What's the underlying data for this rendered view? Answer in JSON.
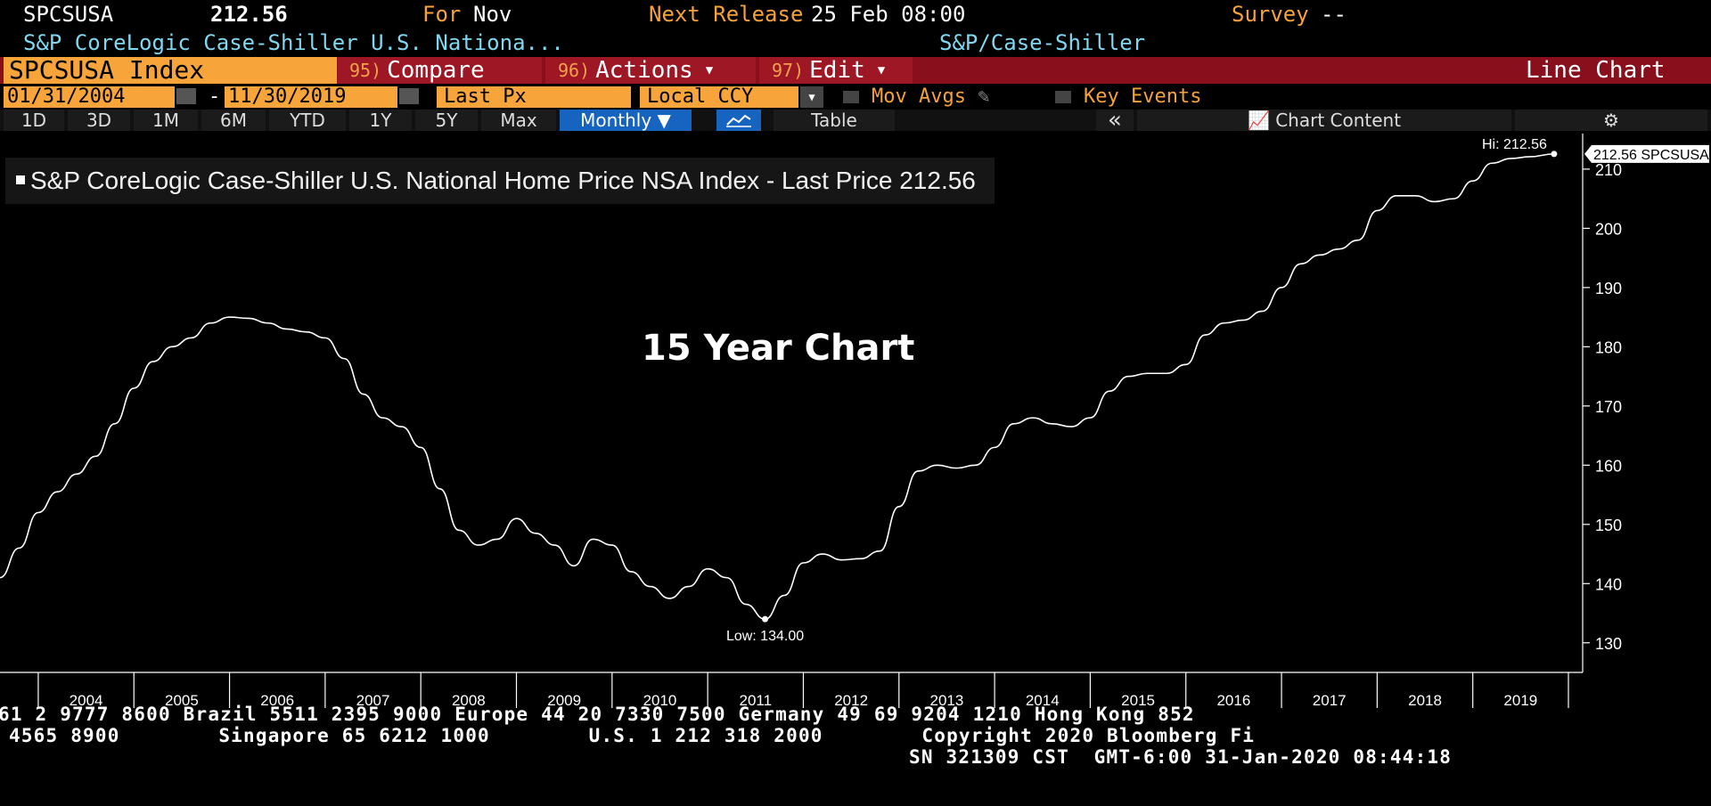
{
  "header": {
    "ticker": "SPCSUSA",
    "last": "212.56",
    "for_label": "For",
    "for_value": "Nov",
    "next_release_label": "Next Release",
    "next_release_value": "25 Feb 08:00",
    "survey_label": "Survey",
    "survey_value": "--",
    "long_name": "S&P CoreLogic Case-Shiller U.S. Nationa...",
    "source": "S&P/Case-Shiller"
  },
  "toolbar": {
    "security": "SPCSUSA Index",
    "compare_num": "95)",
    "compare_label": "Compare",
    "actions_num": "96)",
    "actions_label": "Actions",
    "edit_num": "97)",
    "edit_label": "Edit",
    "mode": "Line Chart",
    "start_date": "01/31/2004",
    "dash": "-",
    "end_date": "11/30/2019",
    "field": "Last Px",
    "currency": "Local CCY",
    "mov_avgs": "Mov Avgs",
    "key_events": "Key Events"
  },
  "tabs": {
    "t1d": "1D",
    "t3d": "3D",
    "t1m": "1M",
    "t6m": "6M",
    "tytd": "YTD",
    "t1y": "1Y",
    "t5y": "5Y",
    "tmax": "Max",
    "monthly": "Monthly ▼",
    "table": "Table",
    "collapse": "«",
    "chart_content": "Chart Content",
    "settings": "⚙"
  },
  "legend": {
    "text": "S&P CoreLogic Case-Shiller U.S. National Home Price NSA Index - Last Price",
    "value": "212.56"
  },
  "annotation": {
    "chart_label": "15 Year Chart"
  },
  "chart_data": {
    "type": "line",
    "title": "",
    "xlabel": "",
    "ylabel": "",
    "ylim": [
      125,
      216
    ],
    "yticks": [
      130,
      140,
      150,
      160,
      170,
      180,
      190,
      200,
      210
    ],
    "xlim": [
      2003.6,
      2020.0
    ],
    "xticks": [
      "2004",
      "2005",
      "2006",
      "2007",
      "2008",
      "2009",
      "2010",
      "2011",
      "2012",
      "2013",
      "2014",
      "2015",
      "2016",
      "2017",
      "2018",
      "2019"
    ],
    "hi_label": "Hi: 212.56",
    "low_label": "Low: 134.00",
    "last_tag": "212.56 SPCSUSA",
    "series": [
      {
        "x": [
          2003.6,
          2003.8,
          2004.0,
          2004.2,
          2004.4,
          2004.6,
          2004.8,
          2005.0,
          2005.2,
          2005.4,
          2005.6,
          2005.8,
          2006.0,
          2006.2,
          2006.4,
          2006.6,
          2006.8,
          2007.0,
          2007.2,
          2007.4,
          2007.6,
          2007.8,
          2008.0,
          2008.2,
          2008.4,
          2008.6,
          2008.8,
          2009.0,
          2009.2,
          2009.4,
          2009.6,
          2009.8,
          2010.0,
          2010.2,
          2010.4,
          2010.6,
          2010.8,
          2011.0,
          2011.2,
          2011.4,
          2011.6,
          2011.8,
          2012.0,
          2012.2,
          2012.4,
          2012.6,
          2012.8,
          2013.0,
          2013.2,
          2013.4,
          2013.6,
          2013.8,
          2014.0,
          2014.2,
          2014.4,
          2014.6,
          2014.8,
          2015.0,
          2015.2,
          2015.4,
          2015.6,
          2015.8,
          2016.0,
          2016.2,
          2016.4,
          2016.6,
          2016.8,
          2017.0,
          2017.2,
          2017.4,
          2017.6,
          2017.8,
          2018.0,
          2018.2,
          2018.4,
          2018.6,
          2018.8,
          2019.0,
          2019.2,
          2019.4,
          2019.6,
          2019.85
        ],
        "y": [
          141,
          146,
          152,
          155.5,
          158.5,
          161.5,
          167,
          173,
          177.5,
          180,
          181.5,
          184,
          185,
          184.8,
          184,
          183,
          182.5,
          181.5,
          178,
          172,
          168,
          166.5,
          163,
          156,
          149,
          146.5,
          147.5,
          151,
          148.5,
          146.5,
          143,
          147.5,
          146.5,
          142,
          139.5,
          137.5,
          139.5,
          142.5,
          141,
          136.5,
          134,
          138,
          143.5,
          145,
          144,
          144.2,
          145.5,
          153,
          159,
          160,
          159.5,
          160,
          163,
          167,
          168,
          167,
          166.5,
          168,
          172.5,
          175,
          175.5,
          175.5,
          177,
          182,
          184,
          184.5,
          186,
          190,
          194,
          195.5,
          196.5,
          198,
          203,
          205.5,
          205.5,
          204.5,
          205,
          208,
          211,
          211.8,
          212.1,
          212.56
        ]
      }
    ]
  },
  "footer": {
    "line1": "61 2 9777 8600 Brazil 5511 2395 9000 Europe 44 20 7330 7500 Germany 49 69 9204 1210 Hong Kong 852",
    "line2": "4565 8900        Singapore 65 6212 1000        U.S. 1 212 318 2000        Copyright 2020 Bloomberg Fi",
    "line3": "SN 321309 CST  GMT-6:00 31-Jan-2020 08:44:18"
  }
}
